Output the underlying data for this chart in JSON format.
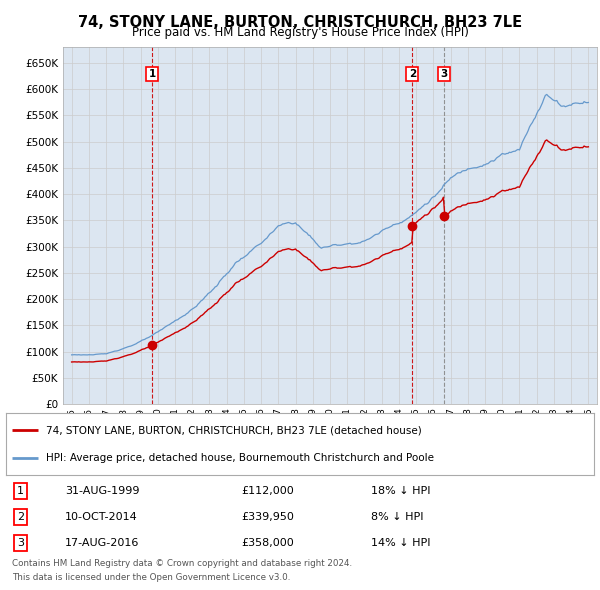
{
  "title": "74, STONY LANE, BURTON, CHRISTCHURCH, BH23 7LE",
  "subtitle": "Price paid vs. HM Land Registry's House Price Index (HPI)",
  "legend_line1": "74, STONY LANE, BURTON, CHRISTCHURCH, BH23 7LE (detached house)",
  "legend_line2": "HPI: Average price, detached house, Bournemouth Christchurch and Poole",
  "transactions": [
    {
      "num": 1,
      "date_str": "31-AUG-1999",
      "date_val": 1999.667,
      "price": 112000,
      "hpi_pct": "18% ↓ HPI",
      "vline_color": "#cc0000",
      "vline_style": "--"
    },
    {
      "num": 2,
      "date_str": "10-OCT-2014",
      "date_val": 2014.775,
      "price": 339950,
      "hpi_pct": "8% ↓ HPI",
      "vline_color": "#cc0000",
      "vline_style": "--"
    },
    {
      "num": 3,
      "date_str": "17-AUG-2016",
      "date_val": 2016.628,
      "price": 358000,
      "hpi_pct": "14% ↓ HPI",
      "vline_color": "#888888",
      "vline_style": "--"
    }
  ],
  "sale_color": "#cc0000",
  "hpi_color": "#6699cc",
  "background_color": "#dce6f1",
  "grid_color": "#cccccc",
  "footnote_line1": "Contains HM Land Registry data © Crown copyright and database right 2024.",
  "footnote_line2": "This data is licensed under the Open Government Licence v3.0.",
  "ylim": [
    0,
    680000
  ],
  "yticks": [
    0,
    50000,
    100000,
    150000,
    200000,
    250000,
    300000,
    350000,
    400000,
    450000,
    500000,
    550000,
    600000,
    650000
  ],
  "xlim_start": 1994.5,
  "xlim_end": 2025.5
}
